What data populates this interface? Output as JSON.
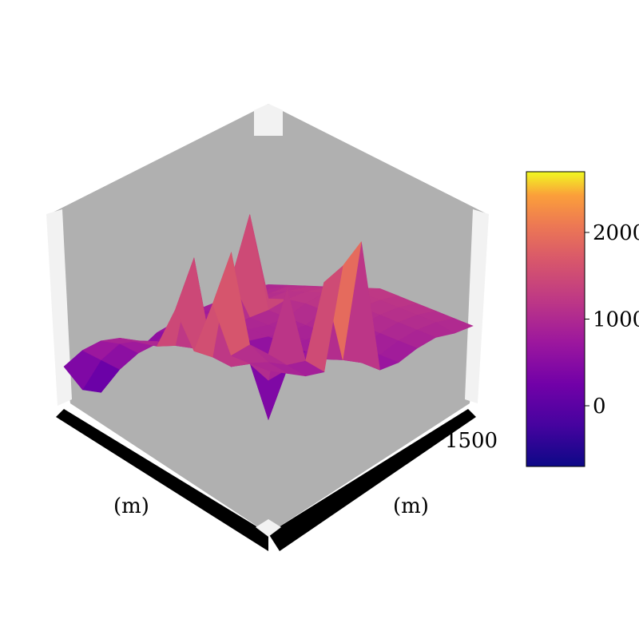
{
  "chart_data": {
    "type": "surface3d",
    "title": "",
    "xlabel": "(m)",
    "ylabel": "(m)",
    "zlabel": "",
    "colormap": "plasma",
    "colorbar": {
      "min": -700,
      "max": 2700,
      "ticks": [
        0,
        1000,
        2000
      ],
      "tick_labels": [
        "0",
        "1000",
        "2000"
      ],
      "placement": "right"
    },
    "x_tick_labels": [
      "",
      "",
      "",
      "",
      "",
      ""
    ],
    "y_tick_labels": [
      "",
      "",
      "",
      "",
      "",
      "1500"
    ],
    "grid": [
      [
        950,
        1000,
        1050,
        1100,
        1150,
        1200,
        1250,
        1200,
        1150,
        1100,
        1050,
        1000
      ],
      [
        950,
        1000,
        1100,
        1150,
        1200,
        1250,
        1250,
        1200,
        1150,
        1100,
        1050,
        950
      ],
      [
        900,
        950,
        1050,
        1150,
        1200,
        1250,
        1200,
        1150,
        1100,
        1050,
        1000,
        950
      ],
      [
        850,
        900,
        1000,
        1100,
        1150,
        1150,
        1100,
        1050,
        1000,
        950,
        900,
        850
      ],
      [
        800,
        850,
        950,
        2400,
        1050,
        1000,
        950,
        900,
        850,
        800,
        750,
        700
      ],
      [
        700,
        800,
        900,
        1500,
        1000,
        950,
        900,
        850,
        800,
        750,
        700,
        650
      ],
      [
        600,
        700,
        800,
        900,
        950,
        950,
        900,
        850,
        800,
        750,
        800,
        2600
      ],
      [
        400,
        600,
        700,
        800,
        900,
        950,
        900,
        -200,
        600,
        700,
        2000,
        2300
      ],
      [
        200,
        500,
        700,
        800,
        850,
        900,
        850,
        700,
        500,
        1900,
        900,
        800
      ],
      [
        -100,
        300,
        600,
        800,
        850,
        850,
        800,
        700,
        800,
        1000,
        900,
        800
      ],
      [
        0,
        500,
        800,
        900,
        950,
        950,
        2300,
        900,
        2500,
        1200,
        1000,
        900
      ],
      [
        400,
        700,
        900,
        1000,
        1000,
        1000,
        1600,
        1050,
        1800,
        1100,
        1050,
        1000
      ]
    ]
  }
}
